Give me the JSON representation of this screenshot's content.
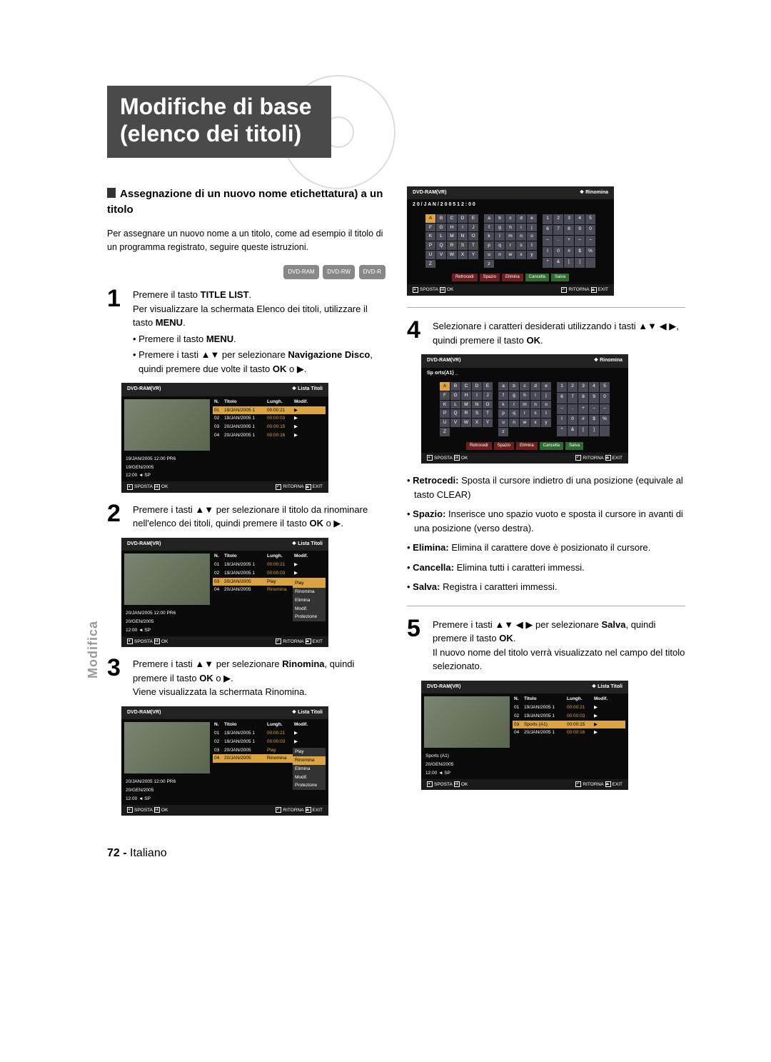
{
  "title": {
    "line1": "Modifiche di base",
    "line2": "(elenco dei titoli)"
  },
  "section_heading": "Assegnazione di un nuovo nome etichettatura) a un titolo",
  "intro": "Per assegnare un nuovo nome a un titolo, come ad esempio il titolo di un programma registrato, seguire queste istruzioni.",
  "disc_badges": [
    "DVD-RAM",
    "DVD-RW",
    "DVD-R"
  ],
  "steps": {
    "1": {
      "text": "Premere il tasto TITLE LIST.\nPer visualizzare la schermata Elenco dei titoli, utilizzare il tasto MENU.",
      "bullets": [
        "Premere il tasto MENU.",
        "Premere i tasti ▲▼ per selezionare Navigazione Disco, quindi premere due volte il tasto OK o ▶."
      ]
    },
    "2": {
      "text": "Premere i tasti ▲▼ per selezionare il titolo da rinominare nell'elenco dei titoli, quindi premere il tasto OK o ▶."
    },
    "3": {
      "text": "Premere i tasti ▲▼ per selezionare Rinomina, quindi premere il tasto OK o ▶.\nViene visualizzata la schermata Rinomina."
    },
    "4": {
      "text": "Selezionare i caratteri desiderati utilizzando i tasti ▲▼ ◀ ▶, quindi premere il tasto OK."
    },
    "5": {
      "text": "Premere i tasti ▲▼ ◀ ▶ per selezionare Salva, quindi premere il tasto OK.\nIl nuovo nome del titolo verrà visualizzato nel campo del titolo selezionato."
    }
  },
  "definitions": [
    {
      "term": "Retrocedi:",
      "desc": "Sposta il cursore indietro di una posizione (equivale al tasto CLEAR)"
    },
    {
      "term": "Spazio:",
      "desc": "Inserisce uno spazio vuoto e sposta il cursore in avanti di una posizione (verso destra)."
    },
    {
      "term": "Elimina:",
      "desc": "Elimina il carattere dove è posizionato il cursore."
    },
    {
      "term": "Cancella:",
      "desc": "Elimina tutti i caratteri immessi."
    },
    {
      "term": "Salva:",
      "desc": "Registra i caratteri immessi."
    }
  ],
  "osd_common": {
    "device": "DVD-RAM(VR)",
    "title_list": "Lista Titoli",
    "rename": "Rinomina",
    "cols": {
      "n": "N.",
      "title": "Titolo",
      "len": "Lungh.",
      "mod": "Modif."
    },
    "foot": {
      "move": "SPOSTA",
      "ok": "OK",
      "return": "RITORNA",
      "exit": "EXIT"
    }
  },
  "osd1": {
    "rows": [
      {
        "n": "01",
        "t": "19/JAN/2005 1",
        "l": "00:00:21",
        "m": "▶",
        "sel": true
      },
      {
        "n": "02",
        "t": "19/JAN/2005 1",
        "l": "00:00:03",
        "m": "▶"
      },
      {
        "n": "03",
        "t": "20/JAN/2005 1",
        "l": "00:00:15",
        "m": "▶"
      },
      {
        "n": "04",
        "t": "20/JAN/2005 1",
        "l": "00:00:16",
        "m": "▶"
      }
    ],
    "info": [
      "19/JAN/2005 12:00  PR6",
      "19/GEN/2005",
      "12:00          ◄ SP"
    ]
  },
  "osd2": {
    "rows": [
      {
        "n": "01",
        "t": "19/JAN/2005 1",
        "l": "00:00:21",
        "m": "▶"
      },
      {
        "n": "02",
        "t": "19/JAN/2005 1",
        "l": "00:00:03",
        "m": "▶"
      },
      {
        "n": "03",
        "t": "20/JAN/2005",
        "l": "Play",
        "sel": true
      },
      {
        "n": "04",
        "t": "20/JAN/2005",
        "l": "Rinomina"
      }
    ],
    "info": [
      "20/JAN/2005 12:00  PR6",
      "20/GEN/2005",
      "12:00          ◄ SP"
    ],
    "menu": [
      "Play",
      "Rinomina",
      "Elimina",
      "Modif.",
      "Protezione"
    ]
  },
  "osd3": {
    "rows": [
      {
        "n": "01",
        "t": "19/JAN/2005 1",
        "l": "00:00:21",
        "m": "▶"
      },
      {
        "n": "02",
        "t": "19/JAN/2005 1",
        "l": "00:00:03",
        "m": "▶"
      },
      {
        "n": "03",
        "t": "20/JAN/2005",
        "l": "Play"
      },
      {
        "n": "04",
        "t": "20/JAN/2005",
        "l": "Rinomina",
        "sel": true
      }
    ],
    "info": [
      "20/JAN/2005 12:00  PR6",
      "20/GEN/2005",
      "12:00          ◄ SP"
    ],
    "menu": [
      "Play",
      "Rinomina",
      "Elimina",
      "Modif.",
      "Protezione"
    ],
    "menu_sel": 1
  },
  "kbd": {
    "date_title": "2 0   /   J A N   /   2 0 0 5   1 2 : 0 0",
    "sports_title": "Sp orts(A1) _",
    "upper": [
      "A",
      "B",
      "C",
      "D",
      "E",
      "F",
      "G",
      "H",
      "I",
      "J",
      "K",
      "L",
      "M",
      "N",
      "O",
      "P",
      "Q",
      "R",
      "S",
      "T",
      "U",
      "V",
      "W",
      "X",
      "Y",
      "Z"
    ],
    "lower": [
      "a",
      "b",
      "c",
      "d",
      "e",
      "f",
      "g",
      "h",
      "i",
      "j",
      "k",
      "l",
      "m",
      "n",
      "o",
      "p",
      "q",
      "r",
      "s",
      "t",
      "u",
      "n",
      "w",
      "x",
      "y",
      "z"
    ],
    "nums": [
      "1",
      "2",
      "3",
      "4",
      "5",
      "6",
      "7",
      "8",
      "9",
      "0",
      "–",
      ".",
      "+",
      "–",
      "–",
      "I",
      "0",
      "#",
      "$",
      "%",
      "*",
      "&",
      "[",
      "]",
      ""
    ],
    "btns": [
      "Retrocedi",
      "Spazio",
      "Elimina",
      "Cancella",
      "Salva"
    ]
  },
  "osd5": {
    "rows": [
      {
        "n": "01",
        "t": "19/JAN/2005 1",
        "l": "00:00:21",
        "m": "▶"
      },
      {
        "n": "02",
        "t": "19/JAN/2005 1",
        "l": "00:00:03",
        "m": "▶"
      },
      {
        "n": "03",
        "t": "Sports (A1)",
        "l": "00:00:15",
        "m": "▶",
        "sel": true
      },
      {
        "n": "04",
        "t": "20/JAN/2005 1",
        "l": "00:00:16",
        "m": "▶"
      }
    ],
    "info": [
      "Sports (A1)",
      "20/GEN/2005",
      "12:00          ◄ SP"
    ]
  },
  "side_tab": "Modifica",
  "footer": {
    "page": "72 -",
    "lang": "Italiano"
  }
}
